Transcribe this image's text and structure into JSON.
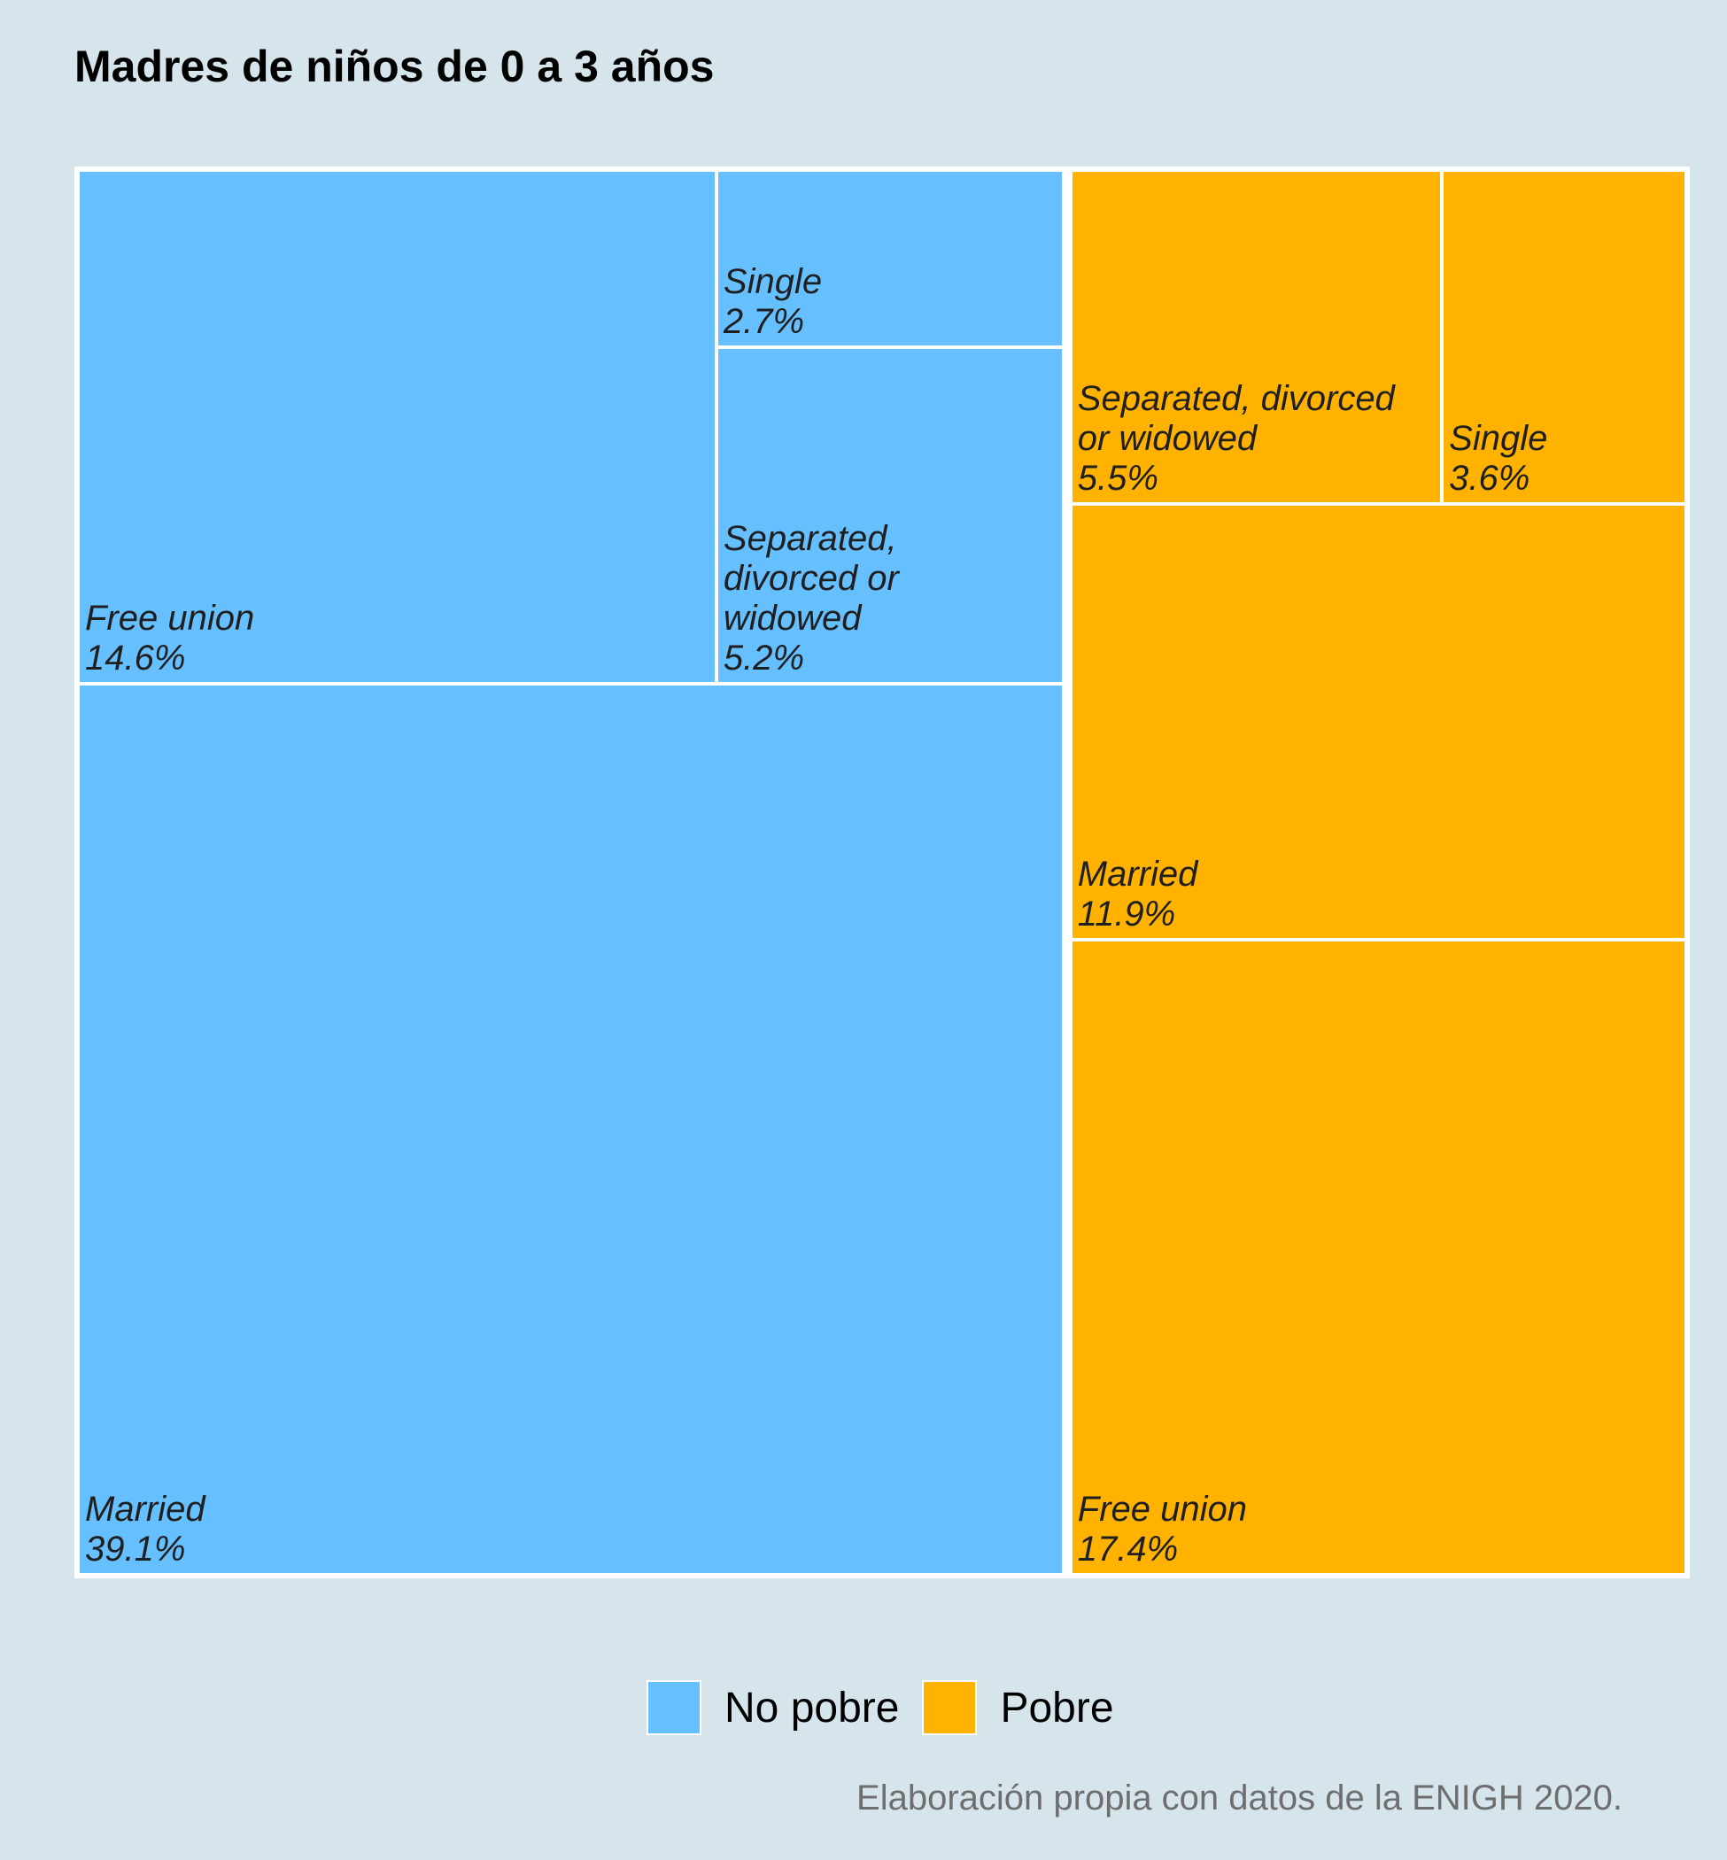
{
  "chart_data": {
    "type": "treemap",
    "title": "Madres de niños de 0 a 3 años",
    "caption": "Elaboración propia con datos de la ENIGH 2020.",
    "legend": {
      "position": "bottom",
      "items": [
        {
          "name": "No pobre",
          "color": "#66bffe"
        },
        {
          "name": "Pobre",
          "color": "#ffb300"
        }
      ]
    },
    "groups": [
      {
        "name": "No pobre",
        "color": "#66bffe",
        "children": [
          {
            "label": "Married",
            "value": 39.1,
            "text": "39.1%"
          },
          {
            "label": "Free union",
            "value": 14.6,
            "text": "14.6%"
          },
          {
            "label": "Separated,\ndivorced or\nwidowed",
            "value": 5.2,
            "text": "5.2%"
          },
          {
            "label": "Single",
            "value": 2.7,
            "text": "2.7%"
          }
        ]
      },
      {
        "name": "Pobre",
        "color": "#ffb300",
        "children": [
          {
            "label": "Free union",
            "value": 17.4,
            "text": "17.4%"
          },
          {
            "label": "Married",
            "value": 11.9,
            "text": "11.9%"
          },
          {
            "label": "Separated, divorced\nor widowed",
            "value": 5.5,
            "text": "5.5%"
          },
          {
            "label": "Single",
            "value": 3.6,
            "text": "3.6%"
          }
        ]
      }
    ]
  }
}
